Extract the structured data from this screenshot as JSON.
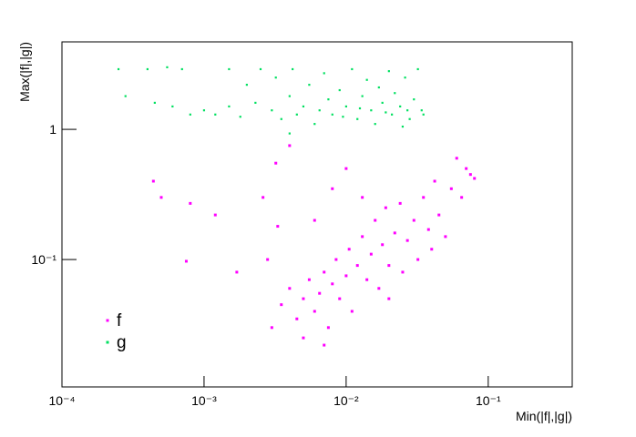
{
  "chart_data": {
    "type": "scatter",
    "log_x": true,
    "log_y": true,
    "x_label": "Min(|f|,|g|)",
    "y_label": "Max(|f|,|g|)",
    "xlim": [
      0.0001,
      0.39
    ],
    "ylim": [
      0.0105,
      4.7
    ],
    "xticks": [
      {
        "value": 0.0001,
        "label": "10⁻⁴"
      },
      {
        "value": 0.001,
        "label": "10⁻³"
      },
      {
        "value": 0.01,
        "label": "10⁻²"
      },
      {
        "value": 0.1,
        "label": "10⁻¹"
      }
    ],
    "yticks": [
      {
        "value": 0.1,
        "label": "10⁻¹"
      },
      1
    ],
    "legend": "bottom-left",
    "series": [
      {
        "name": "f",
        "color": "#ff00ff",
        "x": [
          0.00044,
          0.0005,
          0.0008,
          0.00075,
          0.0012,
          0.0017,
          0.0026,
          0.0028,
          0.0032,
          0.0033,
          0.004,
          0.003,
          0.0035,
          0.004,
          0.0045,
          0.005,
          0.0055,
          0.006,
          0.0065,
          0.007,
          0.0075,
          0.008,
          0.0085,
          0.009,
          0.01,
          0.0105,
          0.011,
          0.012,
          0.013,
          0.014,
          0.015,
          0.016,
          0.017,
          0.018,
          0.019,
          0.02,
          0.022,
          0.024,
          0.025,
          0.027,
          0.03,
          0.032,
          0.035,
          0.038,
          0.04,
          0.042,
          0.045,
          0.05,
          0.055,
          0.06,
          0.065,
          0.07,
          0.075,
          0.08,
          0.005,
          0.007,
          0.006,
          0.01,
          0.013,
          0.008,
          0.02
        ],
        "y": [
          0.4,
          0.3,
          0.27,
          0.097,
          0.22,
          0.08,
          0.3,
          0.1,
          0.55,
          0.18,
          0.75,
          0.03,
          0.045,
          0.06,
          0.035,
          0.05,
          0.07,
          0.04,
          0.055,
          0.08,
          0.03,
          0.065,
          0.1,
          0.05,
          0.075,
          0.12,
          0.04,
          0.09,
          0.15,
          0.07,
          0.11,
          0.2,
          0.06,
          0.13,
          0.25,
          0.09,
          0.16,
          0.27,
          0.08,
          0.14,
          0.2,
          0.1,
          0.3,
          0.17,
          0.12,
          0.4,
          0.22,
          0.15,
          0.35,
          0.6,
          0.3,
          0.5,
          0.45,
          0.42,
          0.025,
          0.022,
          0.2,
          0.5,
          0.3,
          0.35,
          0.05
        ]
      },
      {
        "name": "g",
        "color": "#00e060",
        "x": [
          0.00025,
          0.0004,
          0.00055,
          0.0007,
          0.00028,
          0.00045,
          0.0006,
          0.0008,
          0.001,
          0.0012,
          0.0015,
          0.0018,
          0.002,
          0.0023,
          0.0025,
          0.003,
          0.0032,
          0.0035,
          0.004,
          0.0042,
          0.0045,
          0.005,
          0.0055,
          0.006,
          0.0065,
          0.007,
          0.0075,
          0.008,
          0.009,
          0.01,
          0.011,
          0.012,
          0.013,
          0.014,
          0.015,
          0.016,
          0.017,
          0.018,
          0.02,
          0.021,
          0.022,
          0.024,
          0.026,
          0.028,
          0.03,
          0.032,
          0.034,
          0.035,
          0.004,
          0.025,
          0.0015,
          0.0095,
          0.0125,
          0.019,
          0.027
        ],
        "y": [
          2.9,
          2.9,
          3.0,
          2.9,
          1.8,
          1.6,
          1.5,
          1.3,
          1.4,
          1.3,
          1.5,
          1.25,
          2.2,
          1.6,
          2.9,
          1.4,
          2.5,
          1.2,
          1.8,
          2.9,
          1.3,
          1.5,
          2.2,
          1.1,
          1.4,
          2.7,
          1.7,
          1.3,
          2.0,
          1.5,
          2.9,
          1.2,
          1.8,
          2.4,
          1.4,
          1.1,
          2.1,
          1.6,
          2.8,
          1.3,
          1.9,
          1.5,
          2.5,
          1.2,
          1.7,
          2.9,
          1.4,
          1.3,
          0.93,
          1.05,
          2.9,
          1.25,
          1.45,
          1.35,
          1.4
        ]
      }
    ]
  }
}
